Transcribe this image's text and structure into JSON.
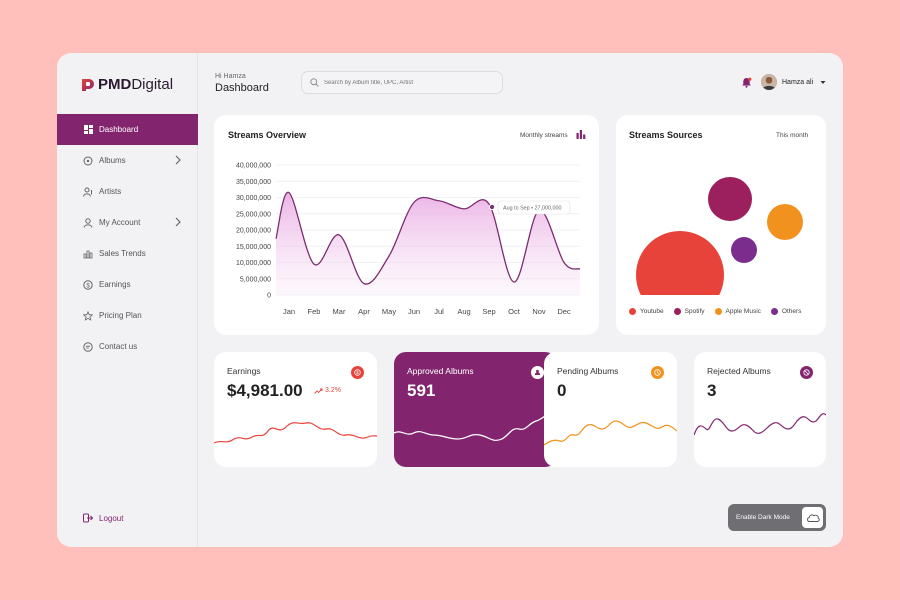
{
  "brand": {
    "bold": "PMD",
    "light": "Digital"
  },
  "header": {
    "greeting": "Hi Hamza",
    "title": "Dashboard",
    "search_placeholder": "Search by Album title, UPC, Artist",
    "user_name": "Hamza ali"
  },
  "sidebar": {
    "items": [
      {
        "label": "Dashboard",
        "icon": "grid-icon",
        "active": true
      },
      {
        "label": "Albums",
        "icon": "album-icon"
      },
      {
        "label": "Artists",
        "icon": "artist-icon"
      },
      {
        "label": "My Account",
        "icon": "user-icon"
      },
      {
        "label": "Sales Trends",
        "icon": "bar-chart-icon"
      },
      {
        "label": "Earnings",
        "icon": "dollar-icon"
      },
      {
        "label": "Pricing Plan",
        "icon": "star-icon"
      },
      {
        "label": "Contact us",
        "icon": "chat-icon"
      }
    ],
    "logout": "Logout"
  },
  "streams_overview": {
    "title": "Streams Overview",
    "period": "Monthly streams",
    "tooltip": "Aug to Sep • 27,000,000"
  },
  "streams_sources": {
    "title": "Streams Sources",
    "period": "This month",
    "legend": [
      {
        "label": "Youtube",
        "color": "#e8433a"
      },
      {
        "label": "Spotify",
        "color": "#9c1f5e"
      },
      {
        "label": "Apple Music",
        "color": "#f2921e"
      },
      {
        "label": "Others",
        "color": "#7b2d8e"
      }
    ]
  },
  "stats": {
    "earnings": {
      "label": "Earnings",
      "value": "$4,981.00",
      "delta": "3.2%",
      "color": "#e8433a"
    },
    "approved": {
      "label": "Approved Albums",
      "value": "591",
      "color": "#82256e"
    },
    "pending": {
      "label": "Pending Albums",
      "value": "0",
      "color": "#f2921e"
    },
    "rejected": {
      "label": "Rejected Albums",
      "value": "3",
      "color": "#82256e"
    }
  },
  "dark_mode_label": "Enable Dark Mode",
  "chart_data": [
    {
      "type": "area",
      "title": "Streams Overview",
      "categories": [
        "Jan",
        "Feb",
        "Mar",
        "Apr",
        "May",
        "Jun",
        "Jul",
        "Aug",
        "Sep",
        "Oct",
        "Nov",
        "Dec"
      ],
      "values": [
        31500000,
        9500000,
        18500000,
        3500000,
        12000000,
        28500000,
        29000000,
        26500000,
        28000000,
        4000000,
        26000000,
        10000000
      ],
      "yticks": [
        "40,000,000",
        "35,000,000",
        "30,000,000",
        "25,000,000",
        "20,000,000",
        "15,000,000",
        "10,000,000",
        "5,000,000",
        "0"
      ],
      "ylim": [
        0,
        40000000
      ],
      "grid": true,
      "color": "#7b2d6e"
    },
    {
      "type": "bubble",
      "title": "Streams Sources",
      "series": [
        {
          "name": "Youtube",
          "color": "#e8433a"
        },
        {
          "name": "Spotify",
          "color": "#9c1f5e"
        },
        {
          "name": "Apple Music",
          "color": "#f2921e"
        },
        {
          "name": "Others",
          "color": "#7b2d8e"
        }
      ]
    }
  ]
}
